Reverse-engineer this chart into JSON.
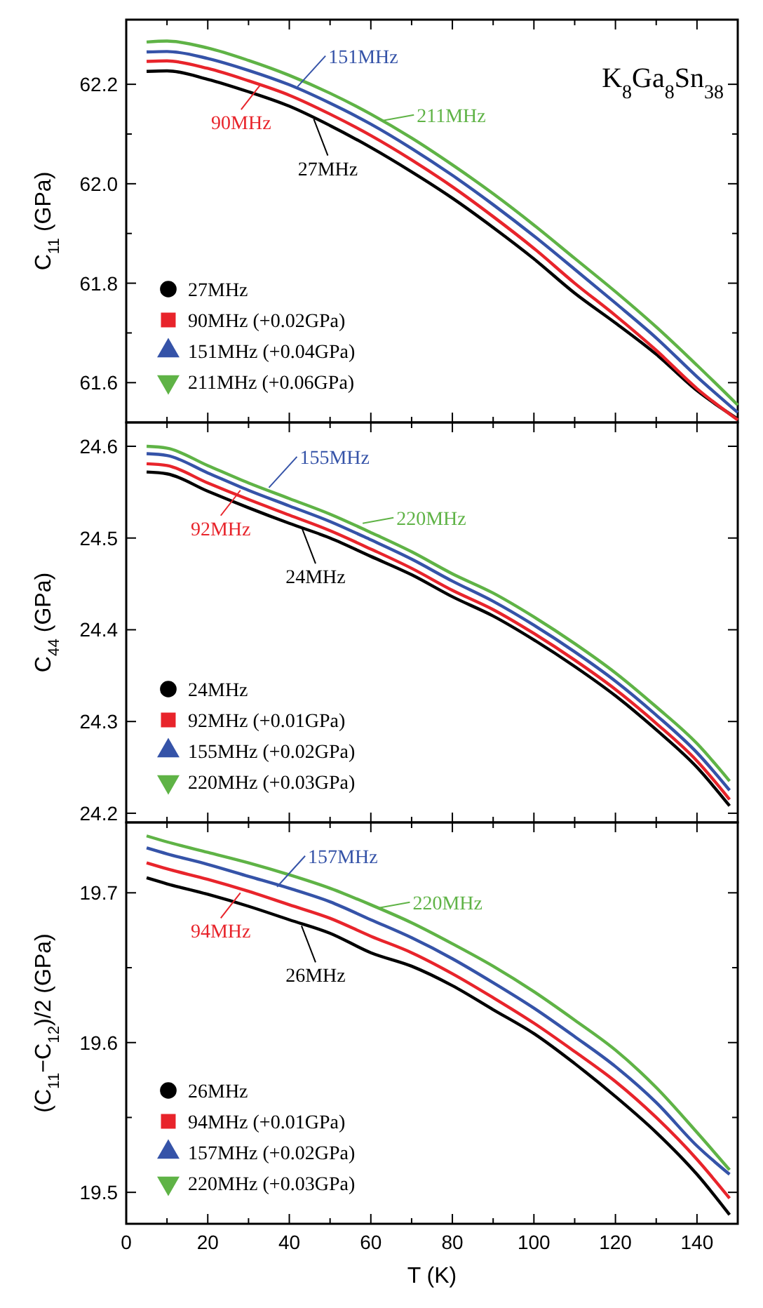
{
  "chart_data": [
    {
      "type": "line",
      "ylabel": "C$_{11}$ (GPa)",
      "x": [
        5,
        10,
        20,
        30,
        40,
        50,
        60,
        70,
        80,
        90,
        100,
        110,
        120,
        130,
        140,
        150
      ],
      "xlim": [
        0,
        150
      ],
      "xticks": [
        0,
        {
          "value": 10,
          "label": null
        },
        20,
        {
          "value": 30,
          "label": null
        },
        40,
        {
          "value": 50,
          "label": null
        },
        60,
        {
          "value": 70,
          "label": null
        },
        80,
        {
          "value": 90,
          "label": null
        },
        100,
        {
          "value": 110,
          "label": null
        },
        120,
        {
          "value": 130,
          "label": null
        },
        140
      ],
      "ylim": [
        61.52,
        62.33
      ],
      "yticks": [
        61.6,
        {
          "value": 61.7,
          "label": null
        },
        61.8,
        {
          "value": 61.9,
          "label": null
        },
        {
          "value": 62,
          "label": "62.0"
        },
        {
          "value": 62.1,
          "label": null
        },
        62.2
      ],
      "tick_labels": "y",
      "legend": "bottom left",
      "line_style": "solid",
      "series": [
        {
          "name": "27MHz",
          "color": "#000000",
          "values": [
            62.226,
            62.227,
            62.21,
            62.185,
            62.156,
            62.117,
            62.073,
            62.024,
            61.971,
            61.912,
            61.849,
            61.78,
            61.72,
            61.657,
            61.584,
            61.527
          ]
        },
        {
          "name": "90MHz (+0.02GPa)",
          "color": "#e8242b",
          "values": [
            62.246,
            62.247,
            62.232,
            62.207,
            62.178,
            62.14,
            62.097,
            62.048,
            61.994,
            61.934,
            61.87,
            61.8,
            61.735,
            61.665,
            61.588,
            61.525
          ]
        },
        {
          "name": "151MHz (+0.04GPa)",
          "color": "#3553a8",
          "values": [
            62.265,
            62.266,
            62.252,
            62.228,
            62.199,
            62.162,
            62.12,
            62.071,
            62.017,
            61.958,
            61.895,
            61.828,
            61.76,
            61.69,
            61.612,
            61.54
          ]
        },
        {
          "name": "211MHz (+0.06GPa)",
          "color": "#5fb346",
          "values": [
            62.285,
            62.287,
            62.273,
            62.248,
            62.218,
            62.182,
            62.14,
            62.092,
            62.038,
            61.98,
            61.917,
            61.85,
            61.783,
            61.712,
            61.635,
            61.555
          ]
        }
      ],
      "annotations": [
        {
          "text": "151MHz",
          "x": 42,
          "y": 62.195
        },
        {
          "text": "211MHz",
          "x": 63,
          "y": 62.127
        },
        {
          "text": "90MHz",
          "x": 33,
          "y": 62.2
        },
        {
          "text": "27MHz",
          "x": 46,
          "y": 62.13
        },
        "K$_{8}$Ga$_{8}$Sn$_{38}$"
      ]
    },
    {
      "type": "line",
      "ylabel": "C$_{44}$ (GPa)",
      "x": [
        5,
        10,
        20,
        30,
        40,
        50,
        60,
        70,
        80,
        90,
        100,
        110,
        120,
        130,
        140,
        148
      ],
      "xlim": [
        0,
        150
      ],
      "xticks": [
        0,
        {
          "value": 10,
          "label": null
        },
        20,
        {
          "value": 30,
          "label": null
        },
        40,
        {
          "value": 50,
          "label": null
        },
        60,
        {
          "value": 70,
          "label": null
        },
        80,
        {
          "value": 90,
          "label": null
        },
        100,
        {
          "value": 110,
          "label": null
        },
        120,
        {
          "value": 130,
          "label": null
        },
        140
      ],
      "ylim": [
        24.19,
        24.626
      ],
      "yticks": [
        24.2,
        24.3,
        24.4,
        24.5,
        24.6
      ],
      "tick_labels": "y",
      "legend": "bottom left",
      "line_style": "solid",
      "series": [
        {
          "name": "24MHz",
          "color": "#000000",
          "values": [
            24.572,
            24.57,
            24.551,
            24.533,
            24.516,
            24.5,
            24.48,
            24.46,
            24.436,
            24.415,
            24.389,
            24.36,
            24.328,
            24.291,
            24.25,
            24.208
          ]
        },
        {
          "name": "92MHz (+0.01GPa)",
          "color": "#e8242b",
          "values": [
            24.581,
            24.579,
            24.56,
            24.542,
            24.525,
            24.508,
            24.488,
            24.467,
            24.443,
            24.422,
            24.396,
            24.367,
            24.335,
            24.298,
            24.257,
            24.215
          ]
        },
        {
          "name": "155MHz (+0.02GPa)",
          "color": "#3553a8",
          "values": [
            24.592,
            24.59,
            24.571,
            24.552,
            24.535,
            24.518,
            24.498,
            24.477,
            24.453,
            24.431,
            24.405,
            24.376,
            24.344,
            24.307,
            24.266,
            24.225
          ]
        },
        {
          "name": "220MHz (+0.03GPa)",
          "color": "#5fb346",
          "values": [
            24.6,
            24.598,
            24.579,
            24.56,
            24.543,
            24.526,
            24.506,
            24.485,
            24.461,
            24.44,
            24.414,
            24.385,
            24.353,
            24.316,
            24.276,
            24.235
          ]
        }
      ],
      "annotations": [
        {
          "text": "155MHz",
          "x": 35,
          "y": 24.555
        },
        {
          "text": "220MHz",
          "x": 58,
          "y": 24.516
        },
        {
          "text": "92MHz",
          "x": 28,
          "y": 24.552
        },
        {
          "text": "24MHz",
          "x": 43,
          "y": 24.512
        }
      ]
    },
    {
      "type": "line",
      "ylabel": "(C$_{11}$−C$_{12}$)/2 (GPa)",
      "xlabel": "T (K)",
      "x": [
        5,
        10,
        20,
        30,
        40,
        50,
        60,
        70,
        80,
        90,
        100,
        110,
        120,
        130,
        140,
        148
      ],
      "xlim": [
        0,
        150
      ],
      "xticks": [
        0,
        {
          "value": 10,
          "label": null
        },
        20,
        {
          "value": 30,
          "label": null
        },
        40,
        {
          "value": 50,
          "label": null
        },
        60,
        {
          "value": 70,
          "label": null
        },
        80,
        {
          "value": 90,
          "label": null
        },
        100,
        {
          "value": 110,
          "label": null
        },
        120,
        {
          "value": 130,
          "label": null
        },
        140
      ],
      "ylim": [
        19.479,
        19.747
      ],
      "yticks": [
        19.5,
        {
          "value": 19.55,
          "label": null
        },
        19.6,
        {
          "value": 19.65,
          "label": null
        },
        19.7
      ],
      "legend": "bottom left",
      "line_style": "solid",
      "series": [
        {
          "name": "26MHz",
          "color": "#000000",
          "values": [
            19.71,
            19.706,
            19.699,
            19.691,
            19.682,
            19.673,
            19.66,
            19.651,
            19.638,
            19.622,
            19.606,
            19.586,
            19.564,
            19.54,
            19.512,
            19.485
          ]
        },
        {
          "name": "94MHz (+0.01GPa)",
          "color": "#e8242b",
          "values": [
            19.72,
            19.716,
            19.709,
            19.701,
            19.692,
            19.683,
            19.671,
            19.66,
            19.646,
            19.63,
            19.613,
            19.594,
            19.574,
            19.55,
            19.522,
            19.496
          ]
        },
        {
          "name": "157MHz (+0.02GPa)",
          "color": "#3553a8",
          "values": [
            19.73,
            19.726,
            19.719,
            19.711,
            19.703,
            19.694,
            19.682,
            19.67,
            19.656,
            19.64,
            19.623,
            19.604,
            19.584,
            19.56,
            19.531,
            19.512
          ]
        },
        {
          "name": "220MHz (+0.03GPa)",
          "color": "#5fb346",
          "values": [
            19.738,
            19.734,
            19.727,
            19.72,
            19.712,
            19.703,
            19.692,
            19.68,
            19.666,
            19.651,
            19.634,
            19.615,
            19.595,
            19.57,
            19.54,
            19.515
          ]
        }
      ],
      "annotations": [
        {
          "text": "157MHz",
          "x": 37,
          "y": 19.704
        },
        {
          "text": "220MHz",
          "x": 62,
          "y": 19.69
        },
        {
          "text": "94MHz",
          "x": 28,
          "y": 19.7
        },
        {
          "text": "26MHz",
          "x": 43,
          "y": 19.678
        }
      ]
    }
  ]
}
